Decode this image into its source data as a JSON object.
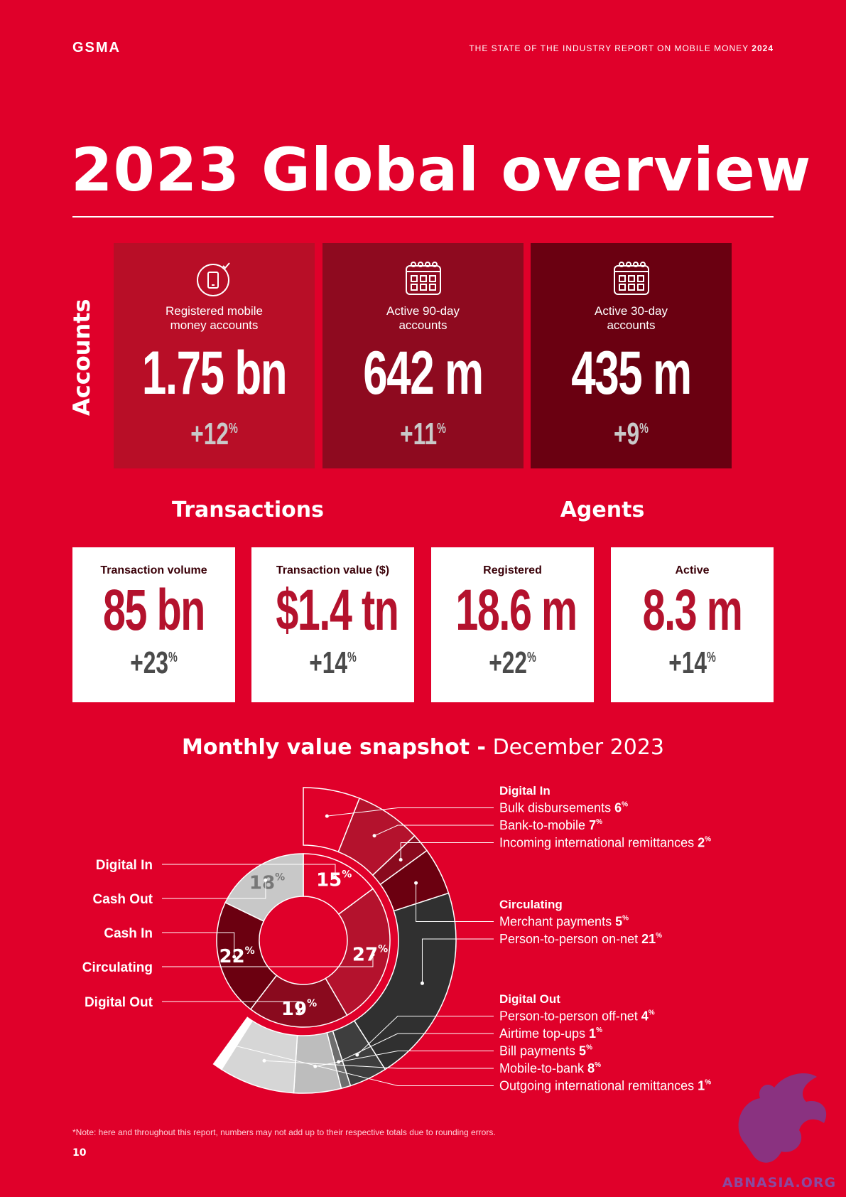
{
  "header": {
    "logo": "GSMA",
    "report_title": "THE STATE OF THE INDUSTRY REPORT ON MOBILE MONEY",
    "report_year": "2024"
  },
  "title": "2023 Global overview",
  "accounts": {
    "label": "Accounts",
    "cards": [
      {
        "icon": "mobile-check-icon",
        "label_1": "Registered mobile",
        "label_2": "money accounts",
        "value": "1.75 bn",
        "growth": "+12",
        "growth_unit": "%",
        "color": "#b80e27"
      },
      {
        "icon": "calendar-icon",
        "label_1": "Active 90-day",
        "label_2": "accounts",
        "value": "642 m",
        "growth": "+11",
        "growth_unit": "%",
        "color": "#8e0a1f"
      },
      {
        "icon": "calendar-icon",
        "label_1": "Active 30-day",
        "label_2": "accounts",
        "value": "435 m",
        "growth": "+9",
        "growth_unit": "%",
        "color": "#6a0011"
      }
    ]
  },
  "transactions": {
    "heading": "Transactions",
    "cards": [
      {
        "label": "Transaction volume",
        "value": "85 bn",
        "growth": "+23",
        "growth_unit": "%"
      },
      {
        "label": "Transaction value ($)",
        "value": "$1.4 tn",
        "growth": "+14",
        "growth_unit": "%"
      }
    ]
  },
  "agents": {
    "heading": "Agents",
    "cards": [
      {
        "label": "Registered",
        "value": "18.6 m",
        "growth": "+22",
        "growth_unit": "%"
      },
      {
        "label": "Active",
        "value": "8.3 m",
        "growth": "+14",
        "growth_unit": "%"
      }
    ]
  },
  "snapshot": {
    "title_bold": "Monthly value snapshot -",
    "title_light": "December 2023"
  },
  "chart_data": {
    "type": "pie",
    "inner": [
      {
        "name": "Digital In",
        "value": 15,
        "label": "15",
        "color": "#e0002a"
      },
      {
        "name": "Circulating",
        "value": 27,
        "label": "27",
        "color": "#b4122d"
      },
      {
        "name": "Digital Out",
        "value": 19,
        "label": "19",
        "color": "#8a0a1e"
      },
      {
        "name": "Cash In",
        "value": 22,
        "label": "22",
        "color": "#6b0010"
      },
      {
        "name": "Cash Out",
        "value": 18,
        "label": "18",
        "color": "#c8c8c8"
      }
    ],
    "inner_legend": [
      "Digital In",
      "Cash Out",
      "Cash In",
      "Circulating",
      "Digital Out"
    ],
    "outer_groups": [
      {
        "heading": "Digital In",
        "items": [
          {
            "name": "Bulk disbursements",
            "value": 6,
            "label": "6",
            "color": "#e0002a"
          },
          {
            "name": "Bank-to-mobile",
            "value": 7,
            "label": "7",
            "color": "#b4122d"
          },
          {
            "name": "Incoming international remittances",
            "value": 2,
            "label": "2",
            "color": "#8a0a1e"
          }
        ]
      },
      {
        "heading": "Circulating",
        "items": [
          {
            "name": "Merchant payments",
            "value": 5,
            "label": "5",
            "color": "#6b0010"
          },
          {
            "name": "Person-to-person on-net",
            "value": 21,
            "label": "21",
            "color": "#303030"
          }
        ]
      },
      {
        "heading": "Digital Out",
        "items": [
          {
            "name": "Person-to-person off-net",
            "value": 4,
            "label": "4",
            "color": "#3e3e3e"
          },
          {
            "name": "Airtime top-ups",
            "value": 1,
            "label": "1",
            "color": "#6e6e6e"
          },
          {
            "name": "Bill payments",
            "value": 5,
            "label": "5",
            "color": "#bdbdbd"
          },
          {
            "name": "Mobile-to-bank",
            "value": 8,
            "label": "8",
            "color": "#d6d6d6"
          },
          {
            "name": "Outgoing international remittances",
            "value": 1,
            "label": "1",
            "color": "#ffffff"
          }
        ]
      }
    ],
    "unit": "%"
  },
  "note": "*Note: here and throughout this report, numbers may not add up to their respective totals due to rounding errors.",
  "page_number": "10",
  "watermark": "ABNASIA.ORG"
}
